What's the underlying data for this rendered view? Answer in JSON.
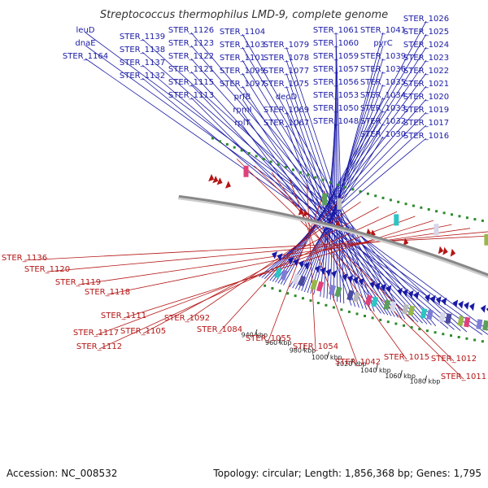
{
  "title": "Streptococcus thermophilus LMD-9, complete genome",
  "footer": {
    "accession": "Accession: NC_008532",
    "topology": "Topology: circular; Length: 1,856,368 bp; Genes: 1,795"
  },
  "ticks": [
    "1080 kbp",
    "1060 kbp",
    "1040 kbp",
    "1020 kbp",
    "1000 kbp",
    "980 kbp",
    "960 kbp",
    "940 kbp"
  ],
  "colors": {
    "forward": "#1a1aa6",
    "reverse": "#b41616",
    "backbone": "#888888",
    "tick": "#2e8b2e"
  },
  "forward_labels": [
    "leuD",
    "dnaE",
    "STER_1164",
    "STER_1139",
    "STER_1138",
    "STER_1137",
    "STER_1132",
    "STER_1126",
    "STER_1123",
    "STER_1122",
    "STER_1121",
    "STER_1115",
    "STER_1113",
    "STER_1104",
    "STER_1103",
    "STER_1101",
    "STER_1099",
    "STER_1097",
    "prfB",
    "rpmI",
    "rplT",
    "STER_1079",
    "STER_1078",
    "STER_1077",
    "STER_1075",
    "deoD",
    "STER_1069",
    "STER_1067",
    "STER_1061",
    "STER_1060",
    "STER_1059",
    "STER_1057",
    "STER_1056",
    "STER_1053",
    "STER_1050",
    "STER_1048",
    "STER_1041",
    "pyrC",
    "STER_1039",
    "STER_1036",
    "STER_1035",
    "STER_1034",
    "STER_1033",
    "STER_1032",
    "STER_1030",
    "STER_1026",
    "STER_1025",
    "STER_1024",
    "STER_1023",
    "STER_1022",
    "STER_1021",
    "STER_1020",
    "STER_1019",
    "STER_1017",
    "STER_1016"
  ],
  "reverse_labels": [
    "STER_1136",
    "STER_1120",
    "STER_1119",
    "STER_1118",
    "STER_1111",
    "STER_1117",
    "STER_1112",
    "STER_1105",
    "STER_1092",
    "STER_1084",
    "STER_1055",
    "STER_1054",
    "STER_1042",
    "STER_1015",
    "STER_1012",
    "STER_1011"
  ]
}
